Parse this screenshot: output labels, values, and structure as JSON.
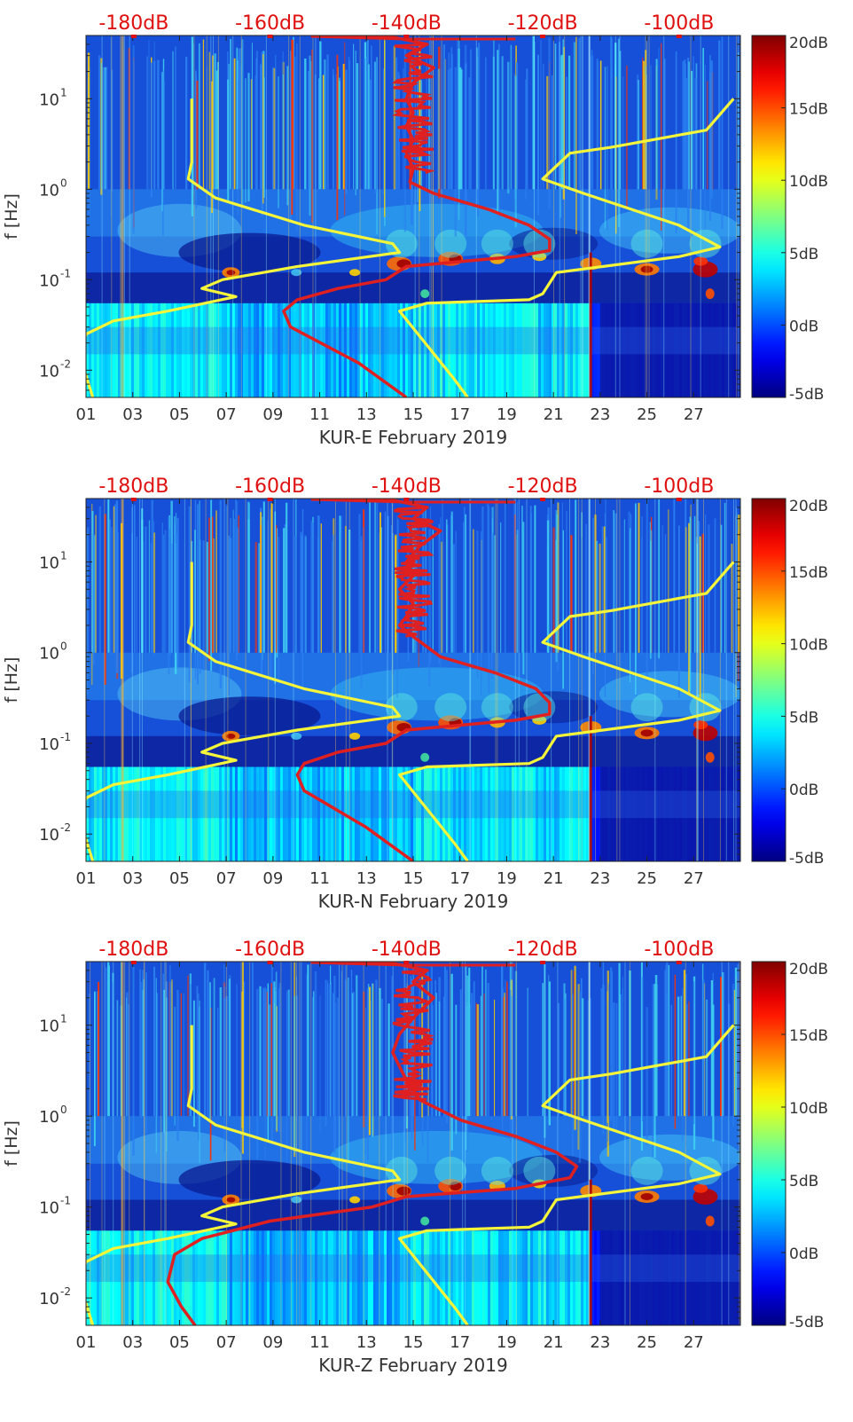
{
  "chart_data": [
    {
      "type": "heatmap",
      "title": "",
      "xlabel": "KUR-E February 2019",
      "ylabel": "f [Hz]",
      "x_ticks": [
        "01",
        "03",
        "05",
        "07",
        "09",
        "11",
        "13",
        "15",
        "17",
        "19",
        "21",
        "23",
        "25",
        "27"
      ],
      "y_ticks": [
        "10^-2",
        "10^-1",
        "10^0",
        "10^1"
      ],
      "y_tick_base": "10",
      "y_tick_exps": [
        "-2",
        "-1",
        "0",
        "1"
      ],
      "xlim_days": [
        1,
        29
      ],
      "ylim_hz": [
        0.005,
        50
      ],
      "top_axis_labels": [
        "-180dB",
        "-160dB",
        "-140dB",
        "-120dB",
        "-100dB"
      ],
      "top_axis_range_db": [
        -187,
        -91
      ],
      "colorbar_labels": [
        "20dB",
        "15dB",
        "10dB",
        "5dB",
        "0dB",
        "-5dB"
      ],
      "colorbar_range_db": [
        -5,
        20
      ],
      "colors": {
        "psd_curve": "#e02020",
        "noise_model": "#f5f53a",
        "annotation": "#e01010"
      },
      "series": [
        {
          "name": "yellow-low",
          "color": "#f5f53a",
          "points": [
            [
              -171.5,
              10
            ],
            [
              -171.5,
              4
            ],
            [
              -171.5,
              2
            ],
            [
              -172,
              1.3
            ],
            [
              -168,
              0.8
            ],
            [
              -155,
              0.4
            ],
            [
              -142,
              0.25
            ],
            [
              -141,
              0.2
            ],
            [
              -156,
              0.14
            ],
            [
              -167,
              0.1
            ],
            [
              -170,
              0.08
            ],
            [
              -165,
              0.065
            ],
            [
              -175,
              0.045
            ],
            [
              -183,
              0.035
            ],
            [
              -187,
              0.025
            ],
            [
              -188,
              0.015
            ],
            [
              -186,
              0.005
            ]
          ]
        },
        {
          "name": "yellow-high",
          "color": "#f5f53a",
          "points": [
            [
              -92,
              10
            ],
            [
              -96,
              4.5
            ],
            [
              -110,
              2.9
            ],
            [
              -116,
              2.5
            ],
            [
              -120,
              1.3
            ],
            [
              -114,
              0.9
            ],
            [
              -100,
              0.4
            ],
            [
              -94,
              0.23
            ],
            [
              -100,
              0.18
            ],
            [
              -118,
              0.12
            ],
            [
              -120,
              0.07
            ],
            [
              -122,
              0.06
            ],
            [
              -137,
              0.055
            ],
            [
              -141,
              0.045
            ],
            [
              -133,
              0.008
            ],
            [
              -131,
              0.005
            ]
          ]
        },
        {
          "name": "red-psd",
          "color": "#e02020",
          "points": [
            [
              -150,
              50
            ],
            [
              -142,
              48
            ],
            [
              -137,
              40
            ],
            [
              -140,
              30
            ],
            [
              -136,
              22
            ],
            [
              -139,
              15
            ],
            [
              -140,
              10
            ],
            [
              -139,
              7
            ],
            [
              -140,
              5
            ],
            [
              -139,
              3.5
            ],
            [
              -140,
              2.5
            ],
            [
              -139,
              1.7
            ],
            [
              -139.5,
              1.2
            ],
            [
              -136,
              0.9
            ],
            [
              -128,
              0.6
            ],
            [
              -122,
              0.4
            ],
            [
              -119,
              0.28
            ],
            [
              -119,
              0.21
            ],
            [
              -124,
              0.18
            ],
            [
              -140,
              0.14
            ],
            [
              -143,
              0.1
            ],
            [
              -150,
              0.08
            ],
            [
              -156,
              0.06
            ],
            [
              -158,
              0.045
            ],
            [
              -157,
              0.03
            ],
            [
              -147,
              0.012
            ],
            [
              -140,
              0.005
            ]
          ]
        }
      ]
    },
    {
      "type": "heatmap",
      "title": "",
      "xlabel": "KUR-N February 2019",
      "ylabel": "f [Hz]",
      "x_ticks": [
        "01",
        "03",
        "05",
        "07",
        "09",
        "11",
        "13",
        "15",
        "17",
        "19",
        "21",
        "23",
        "25",
        "27"
      ],
      "y_ticks": [
        "10^-2",
        "10^-1",
        "10^0",
        "10^1"
      ],
      "y_tick_base": "10",
      "y_tick_exps": [
        "-2",
        "-1",
        "0",
        "1"
      ],
      "xlim_days": [
        1,
        29
      ],
      "ylim_hz": [
        0.005,
        50
      ],
      "top_axis_labels": [
        "-180dB",
        "-160dB",
        "-140dB",
        "-120dB",
        "-100dB"
      ],
      "top_axis_range_db": [
        -187,
        -91
      ],
      "colorbar_labels": [
        "20dB",
        "15dB",
        "10dB",
        "5dB",
        "0dB",
        "-5dB"
      ],
      "colorbar_range_db": [
        -5,
        20
      ],
      "colors": {
        "psd_curve": "#e02020",
        "noise_model": "#f5f53a",
        "annotation": "#e01010"
      },
      "series": [
        {
          "name": "yellow-low",
          "color": "#f5f53a",
          "points": [
            [
              -171.5,
              10
            ],
            [
              -171.5,
              4
            ],
            [
              -171.5,
              2
            ],
            [
              -172,
              1.3
            ],
            [
              -168,
              0.8
            ],
            [
              -155,
              0.4
            ],
            [
              -142,
              0.25
            ],
            [
              -141,
              0.2
            ],
            [
              -156,
              0.14
            ],
            [
              -167,
              0.1
            ],
            [
              -170,
              0.08
            ],
            [
              -165,
              0.065
            ],
            [
              -175,
              0.045
            ],
            [
              -183,
              0.035
            ],
            [
              -187,
              0.025
            ],
            [
              -188,
              0.015
            ],
            [
              -186,
              0.005
            ]
          ]
        },
        {
          "name": "yellow-high",
          "color": "#f5f53a",
          "points": [
            [
              -92,
              10
            ],
            [
              -96,
              4.5
            ],
            [
              -110,
              2.9
            ],
            [
              -116,
              2.5
            ],
            [
              -120,
              1.3
            ],
            [
              -114,
              0.9
            ],
            [
              -100,
              0.4
            ],
            [
              -94,
              0.23
            ],
            [
              -100,
              0.18
            ],
            [
              -118,
              0.12
            ],
            [
              -120,
              0.07
            ],
            [
              -122,
              0.06
            ],
            [
              -137,
              0.055
            ],
            [
              -141,
              0.045
            ],
            [
              -133,
              0.008
            ],
            [
              -131,
              0.005
            ]
          ]
        },
        {
          "name": "red-psd",
          "color": "#e02020",
          "points": [
            [
              -150,
              50
            ],
            [
              -142,
              48
            ],
            [
              -137,
              40
            ],
            [
              -139,
              30
            ],
            [
              -135,
              22
            ],
            [
              -138,
              15
            ],
            [
              -140,
              10
            ],
            [
              -139,
              7
            ],
            [
              -141,
              5
            ],
            [
              -139,
              3.5
            ],
            [
              -140,
              2.5
            ],
            [
              -141,
              2
            ],
            [
              -139,
              1.5
            ],
            [
              -135,
              0.9
            ],
            [
              -127,
              0.6
            ],
            [
              -121,
              0.4
            ],
            [
              -119,
              0.28
            ],
            [
              -119,
              0.21
            ],
            [
              -124,
              0.18
            ],
            [
              -140,
              0.14
            ],
            [
              -143,
              0.1
            ],
            [
              -150,
              0.08
            ],
            [
              -155,
              0.06
            ],
            [
              -156,
              0.045
            ],
            [
              -155,
              0.03
            ],
            [
              -146,
              0.012
            ],
            [
              -139,
              0.005
            ]
          ]
        }
      ]
    },
    {
      "type": "heatmap",
      "title": "",
      "xlabel": "KUR-Z February 2019",
      "ylabel": "f [Hz]",
      "x_ticks": [
        "01",
        "03",
        "05",
        "07",
        "09",
        "11",
        "13",
        "15",
        "17",
        "19",
        "21",
        "23",
        "25",
        "27"
      ],
      "y_ticks": [
        "10^-2",
        "10^-1",
        "10^0",
        "10^1"
      ],
      "y_tick_base": "10",
      "y_tick_exps": [
        "-2",
        "-1",
        "0",
        "1"
      ],
      "xlim_days": [
        1,
        29
      ],
      "ylim_hz": [
        0.005,
        50
      ],
      "top_axis_labels": [
        "-180dB",
        "-160dB",
        "-140dB",
        "-120dB",
        "-100dB"
      ],
      "top_axis_range_db": [
        -187,
        -91
      ],
      "colorbar_labels": [
        "20dB",
        "15dB",
        "10dB",
        "5dB",
        "0dB",
        "-5dB"
      ],
      "colorbar_range_db": [
        -5,
        20
      ],
      "colors": {
        "psd_curve": "#e02020",
        "noise_model": "#f5f53a",
        "annotation": "#e01010"
      },
      "series": [
        {
          "name": "yellow-low",
          "color": "#f5f53a",
          "points": [
            [
              -171.5,
              10
            ],
            [
              -171.5,
              4
            ],
            [
              -171.5,
              2
            ],
            [
              -172,
              1.3
            ],
            [
              -168,
              0.8
            ],
            [
              -155,
              0.4
            ],
            [
              -142,
              0.25
            ],
            [
              -141,
              0.2
            ],
            [
              -156,
              0.14
            ],
            [
              -167,
              0.1
            ],
            [
              -170,
              0.08
            ],
            [
              -165,
              0.065
            ],
            [
              -175,
              0.045
            ],
            [
              -183,
              0.035
            ],
            [
              -187,
              0.025
            ],
            [
              -188,
              0.015
            ],
            [
              -186,
              0.005
            ]
          ]
        },
        {
          "name": "yellow-high",
          "color": "#f5f53a",
          "points": [
            [
              -92,
              10
            ],
            [
              -96,
              4.5
            ],
            [
              -110,
              2.9
            ],
            [
              -116,
              2.5
            ],
            [
              -120,
              1.3
            ],
            [
              -114,
              0.9
            ],
            [
              -100,
              0.4
            ],
            [
              -94,
              0.23
            ],
            [
              -100,
              0.18
            ],
            [
              -118,
              0.12
            ],
            [
              -120,
              0.07
            ],
            [
              -122,
              0.06
            ],
            [
              -137,
              0.055
            ],
            [
              -141,
              0.045
            ],
            [
              -133,
              0.008
            ],
            [
              -131,
              0.005
            ]
          ]
        },
        {
          "name": "red-psd",
          "color": "#e02020",
          "points": [
            [
              -150,
              50
            ],
            [
              -142,
              48
            ],
            [
              -137,
              40
            ],
            [
              -139,
              30
            ],
            [
              -136,
              20
            ],
            [
              -139,
              12
            ],
            [
              -141,
              8
            ],
            [
              -142,
              5
            ],
            [
              -141,
              3.5
            ],
            [
              -140,
              2.5
            ],
            [
              -138,
              1.5
            ],
            [
              -132,
              0.9
            ],
            [
              -124,
              0.6
            ],
            [
              -118,
              0.4
            ],
            [
              -115,
              0.28
            ],
            [
              -116,
              0.21
            ],
            [
              -124,
              0.16
            ],
            [
              -140,
              0.13
            ],
            [
              -145,
              0.1
            ],
            [
              -160,
              0.07
            ],
            [
              -170,
              0.045
            ],
            [
              -174,
              0.03
            ],
            [
              -175,
              0.015
            ],
            [
              -173,
              0.008
            ],
            [
              -171,
              0.005
            ]
          ]
        }
      ]
    }
  ]
}
